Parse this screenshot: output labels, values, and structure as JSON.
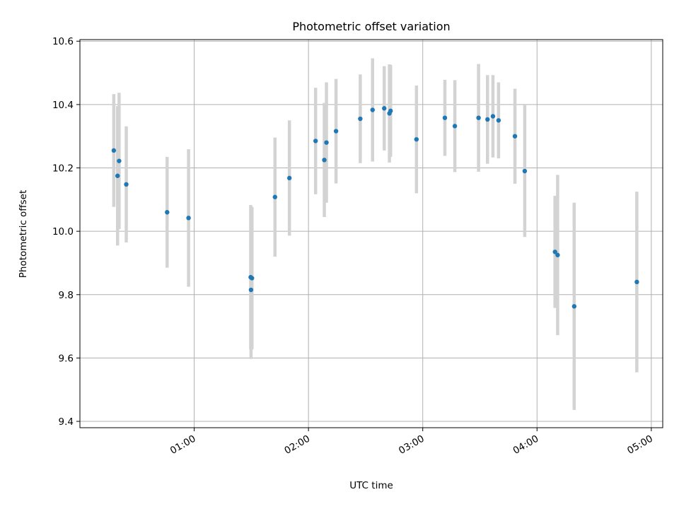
{
  "chart_data": {
    "type": "scatter",
    "title": "Photometric offset variation",
    "xlabel": "UTC time",
    "ylabel": "Photometric offset",
    "x_unit": "UTC time (HH:MM)",
    "xlim": [
      "00:00",
      "05:06"
    ],
    "ylim": [
      9.38,
      10.605
    ],
    "x_ticks": [
      "01:00",
      "02:00",
      "03:00",
      "04:00",
      "05:00"
    ],
    "y_ticks": [
      9.4,
      9.6,
      9.8,
      10.0,
      10.2,
      10.4,
      10.6
    ],
    "y_tick_labels": [
      "9.4",
      "9.6",
      "9.8",
      "10.0",
      "10.2",
      "10.4",
      "10.6"
    ],
    "grid": true,
    "colors": {
      "point": "#1f77b4",
      "errorbar": "#d3d3d3",
      "grid": "#b0b0b0"
    },
    "points": [
      {
        "x": "00:17:47",
        "y": 10.255,
        "yerr": 0.178
      },
      {
        "x": "00:19:46",
        "y": 10.175,
        "yerr": 0.22
      },
      {
        "x": "00:20:34",
        "y": 10.222,
        "yerr": 0.215
      },
      {
        "x": "00:24:20",
        "y": 10.148,
        "yerr": 0.183
      },
      {
        "x": "00:45:47",
        "y": 10.06,
        "yerr": 0.175
      },
      {
        "x": "00:57:02",
        "y": 10.042,
        "yerr": 0.217
      },
      {
        "x": "01:29:40",
        "y": 9.855,
        "yerr": 0.228
      },
      {
        "x": "01:29:50",
        "y": 9.815,
        "yerr": 0.218
      },
      {
        "x": "01:30:20",
        "y": 9.852,
        "yerr": 0.225
      },
      {
        "x": "01:42:25",
        "y": 10.108,
        "yerr": 0.188
      },
      {
        "x": "01:49:59",
        "y": 10.168,
        "yerr": 0.182
      },
      {
        "x": "02:03:44",
        "y": 10.285,
        "yerr": 0.168
      },
      {
        "x": "02:08:19",
        "y": 10.225,
        "yerr": 0.18
      },
      {
        "x": "02:09:26",
        "y": 10.28,
        "yerr": 0.19
      },
      {
        "x": "02:14:28",
        "y": 10.316,
        "yerr": 0.165
      },
      {
        "x": "02:27:12",
        "y": 10.355,
        "yerr": 0.14
      },
      {
        "x": "02:33:39",
        "y": 10.383,
        "yerr": 0.163
      },
      {
        "x": "02:39:47",
        "y": 10.388,
        "yerr": 0.133
      },
      {
        "x": "02:42:30",
        "y": 10.372,
        "yerr": 0.155
      },
      {
        "x": "02:43:07",
        "y": 10.38,
        "yerr": 0.145
      },
      {
        "x": "02:56:42",
        "y": 10.29,
        "yerr": 0.17
      },
      {
        "x": "03:11:37",
        "y": 10.358,
        "yerr": 0.12
      },
      {
        "x": "03:16:51",
        "y": 10.332,
        "yerr": 0.145
      },
      {
        "x": "03:29:18",
        "y": 10.358,
        "yerr": 0.17
      },
      {
        "x": "03:34:00",
        "y": 10.353,
        "yerr": 0.14
      },
      {
        "x": "03:36:51",
        "y": 10.363,
        "yerr": 0.13
      },
      {
        "x": "03:39:48",
        "y": 10.35,
        "yerr": 0.12
      },
      {
        "x": "03:48:24",
        "y": 10.3,
        "yerr": 0.15
      },
      {
        "x": "03:53:33",
        "y": 10.19,
        "yerr": 0.208
      },
      {
        "x": "04:09:26",
        "y": 9.935,
        "yerr": 0.177
      },
      {
        "x": "04:10:49",
        "y": 9.925,
        "yerr": 0.253
      },
      {
        "x": "04:19:31",
        "y": 9.763,
        "yerr": 0.327
      },
      {
        "x": "04:52:24",
        "y": 9.84,
        "yerr": 0.285
      }
    ]
  }
}
